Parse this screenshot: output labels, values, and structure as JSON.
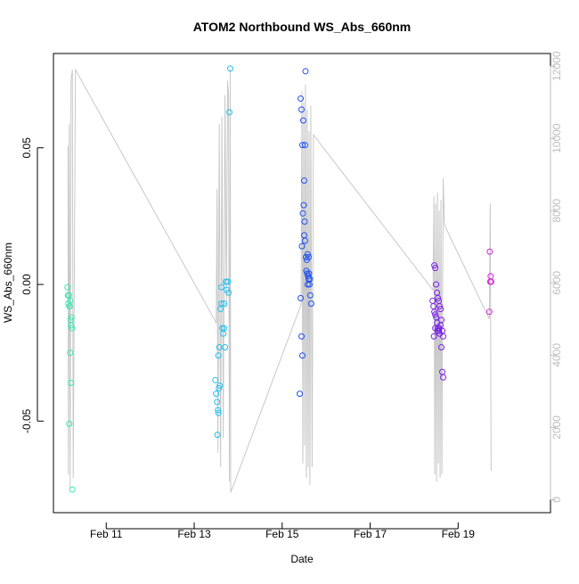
{
  "chart_data": {
    "type": "scatter",
    "title": "ATOM2 Northbound WS_Abs_660nm",
    "xlabel": "Date",
    "ylabel": "WS_Abs_660nm",
    "x_unit": "days (February)",
    "xlim": [
      9.8,
      21.1
    ],
    "ylim": [
      -0.0835,
      0.0845
    ],
    "y2lim": [
      -360,
      12350
    ],
    "x_ticks": [
      {
        "value": 11,
        "label": "Feb 11"
      },
      {
        "value": 13,
        "label": "Feb 13"
      },
      {
        "value": 15,
        "label": "Feb 15"
      },
      {
        "value": 17,
        "label": "Feb 17"
      },
      {
        "value": 19,
        "label": "Feb 19"
      }
    ],
    "y_ticks": [
      {
        "value": -0.05,
        "label": "-0.05"
      },
      {
        "value": 0.0,
        "label": "0.00"
      },
      {
        "value": 0.05,
        "label": "0.05"
      }
    ],
    "y2_ticks": [
      {
        "value": 0,
        "label": "0"
      },
      {
        "value": 2000,
        "label": "2000"
      },
      {
        "value": 4000,
        "label": "4000"
      },
      {
        "value": 6000,
        "label": "6000"
      },
      {
        "value": 8000,
        "label": "8000"
      },
      {
        "value": 10000,
        "label": "10000"
      },
      {
        "value": 12000,
        "label": "12000"
      }
    ],
    "grid": false,
    "legend": "none",
    "colors": {
      "background_line": "#c8c8c8",
      "axis": "#000000",
      "secondary_axis": "#bdbdbd",
      "point_cycle_1": "#38e8b0",
      "point_cycle_2": "#22c0ee",
      "point_cycle_3": "#1f4ff0",
      "point_cycle_4": "#7a22e8",
      "point_cycle_5": "#d625d8"
    },
    "secondary_series": {
      "name": "",
      "description_axis": "right",
      "x": [
        10.13,
        10.14,
        10.16,
        10.18,
        10.2,
        10.23,
        10.25,
        10.3,
        13.5,
        13.52,
        13.54,
        13.57,
        13.6,
        13.63,
        13.66,
        13.7,
        13.73,
        13.76,
        13.78,
        13.8,
        13.82,
        13.83,
        15.43,
        15.45,
        15.47,
        15.49,
        15.51,
        15.53,
        15.55,
        15.57,
        15.59,
        15.61,
        15.63,
        15.65,
        15.68,
        15.71,
        18.43,
        18.45,
        18.47,
        18.49,
        18.51,
        18.53,
        18.55,
        18.57,
        18.59,
        18.61,
        18.63,
        18.66,
        18.69,
        19.71,
        19.73,
        19.75
      ],
      "y": [
        9800,
        700,
        10400,
        300,
        11600,
        11900,
        600,
        11900,
        4900,
        8600,
        1300,
        10400,
        900,
        10600,
        1700,
        11200,
        5300,
        11600,
        11200,
        500,
        11900,
        200,
        5400,
        11300,
        1000,
        11000,
        1500,
        11500,
        600,
        10800,
        900,
        10200,
        400,
        10900,
        900,
        10100,
        5800,
        8400,
        700,
        8200,
        500,
        8500,
        1000,
        8000,
        600,
        8300,
        700,
        8900,
        7600,
        5000,
        8200,
        800
      ]
    },
    "series": [
      {
        "name": "",
        "color": "#38e8b0",
        "points": [
          [
            10.12,
            -0.001
          ],
          [
            10.13,
            -0.004
          ],
          [
            10.14,
            -0.007
          ],
          [
            10.15,
            -0.004
          ],
          [
            10.16,
            -0.008
          ],
          [
            10.17,
            -0.008
          ],
          [
            10.18,
            -0.006
          ],
          [
            10.19,
            -0.013
          ],
          [
            10.2,
            -0.015
          ],
          [
            10.21,
            -0.012
          ],
          [
            10.22,
            -0.016
          ],
          [
            10.18,
            -0.025
          ],
          [
            10.2,
            -0.036
          ],
          [
            10.16,
            -0.051
          ],
          [
            10.23,
            -0.075
          ]
        ]
      },
      {
        "name": "",
        "color": "#22c0ee",
        "points": [
          [
            13.48,
            -0.035
          ],
          [
            13.5,
            -0.04
          ],
          [
            13.52,
            -0.043
          ],
          [
            13.54,
            -0.046
          ],
          [
            13.56,
            -0.038
          ],
          [
            13.58,
            -0.037
          ],
          [
            13.55,
            -0.047
          ],
          [
            13.53,
            -0.055
          ],
          [
            13.55,
            -0.026
          ],
          [
            13.57,
            -0.023
          ],
          [
            13.6,
            -0.009
          ],
          [
            13.62,
            -0.007
          ],
          [
            13.64,
            -0.016
          ],
          [
            13.66,
            -0.018
          ],
          [
            13.68,
            -0.016
          ],
          [
            13.7,
            -0.023
          ],
          [
            13.72,
            0.001
          ],
          [
            13.74,
            -0.002
          ],
          [
            13.76,
            0.001
          ],
          [
            13.78,
            -0.003
          ],
          [
            13.8,
            0.063
          ],
          [
            13.82,
            0.079
          ],
          [
            13.62,
            -0.001
          ],
          [
            13.68,
            -0.007
          ]
        ]
      },
      {
        "name": "",
        "color": "#1f4ff0",
        "points": [
          [
            15.4,
            -0.04
          ],
          [
            15.42,
            -0.005
          ],
          [
            15.44,
            -0.019
          ],
          [
            15.46,
            -0.026
          ],
          [
            15.45,
            0.014
          ],
          [
            15.47,
            0.026
          ],
          [
            15.49,
            0.029
          ],
          [
            15.5,
            0.038
          ],
          [
            15.52,
            0.051
          ],
          [
            15.48,
            0.06
          ],
          [
            15.44,
            0.064
          ],
          [
            15.42,
            0.068
          ],
          [
            15.46,
            0.051
          ],
          [
            15.53,
            0.078
          ],
          [
            15.51,
            0.023
          ],
          [
            15.54,
            0.01
          ],
          [
            15.56,
            0.009
          ],
          [
            15.58,
            0.011
          ],
          [
            15.6,
            0.01
          ],
          [
            15.55,
            0.005
          ],
          [
            15.57,
            0.004
          ],
          [
            15.59,
            0.003
          ],
          [
            15.61,
            0.004
          ],
          [
            15.63,
            0.002
          ],
          [
            15.58,
            0.0
          ],
          [
            15.6,
            0.002
          ],
          [
            15.62,
            0.0
          ],
          [
            15.64,
            -0.004
          ],
          [
            15.66,
            -0.007
          ],
          [
            15.52,
            0.016
          ],
          [
            15.5,
            0.018
          ]
        ]
      },
      {
        "name": "",
        "color": "#7a22e8",
        "points": [
          [
            18.42,
            -0.006
          ],
          [
            18.44,
            -0.008
          ],
          [
            18.46,
            -0.01
          ],
          [
            18.48,
            -0.011
          ],
          [
            18.5,
            -0.012
          ],
          [
            18.52,
            -0.014
          ],
          [
            18.54,
            -0.016
          ],
          [
            18.56,
            -0.017
          ],
          [
            18.58,
            -0.018
          ],
          [
            18.6,
            -0.015
          ],
          [
            18.62,
            -0.013
          ],
          [
            18.64,
            -0.017
          ],
          [
            18.66,
            -0.019
          ],
          [
            18.46,
            0.007
          ],
          [
            18.48,
            0.006
          ],
          [
            18.5,
            0.0
          ],
          [
            18.52,
            -0.003
          ],
          [
            18.54,
            -0.005
          ],
          [
            18.56,
            -0.006
          ],
          [
            18.58,
            -0.008
          ],
          [
            18.6,
            -0.009
          ],
          [
            18.45,
            -0.019
          ],
          [
            18.62,
            -0.023
          ],
          [
            18.64,
            -0.032
          ],
          [
            18.66,
            -0.034
          ],
          [
            18.48,
            -0.016
          ],
          [
            18.53,
            -0.017
          ],
          [
            18.57,
            -0.016
          ]
        ]
      },
      {
        "name": "",
        "color": "#d625d8",
        "points": [
          [
            19.72,
            0.012
          ],
          [
            19.74,
            0.003
          ],
          [
            19.75,
            0.001
          ],
          [
            19.73,
            0.001
          ],
          [
            19.71,
            -0.01
          ]
        ]
      }
    ]
  }
}
